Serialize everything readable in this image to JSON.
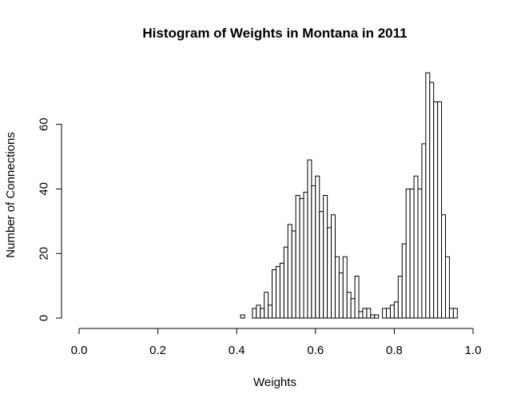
{
  "chart_data": {
    "type": "bar",
    "title": "Histogram of Weights in Montana in 2011",
    "xlabel": "Weights",
    "ylabel": "Number of Connections",
    "xlim": [
      0,
      1
    ],
    "ylim": [
      0,
      76
    ],
    "grid": false,
    "x_ticks": [
      "0.0",
      "0.2",
      "0.4",
      "0.6",
      "0.8",
      "1.0"
    ],
    "y_ticks": [
      "0",
      "20",
      "40",
      "60"
    ],
    "bin_width": 0.01,
    "bin_starts": [
      0.0,
      0.01,
      0.02,
      0.03,
      0.04,
      0.05,
      0.06,
      0.07,
      0.08,
      0.09,
      0.1,
      0.11,
      0.12,
      0.13,
      0.14,
      0.15,
      0.16,
      0.17,
      0.18,
      0.19,
      0.2,
      0.21,
      0.22,
      0.23,
      0.24,
      0.25,
      0.26,
      0.27,
      0.28,
      0.29,
      0.3,
      0.31,
      0.32,
      0.33,
      0.34,
      0.35,
      0.36,
      0.37,
      0.38,
      0.39,
      0.4,
      0.41,
      0.42,
      0.43,
      0.44,
      0.45,
      0.46,
      0.47,
      0.48,
      0.49,
      0.5,
      0.51,
      0.52,
      0.53,
      0.54,
      0.55,
      0.56,
      0.57,
      0.58,
      0.59,
      0.6,
      0.61,
      0.62,
      0.63,
      0.64,
      0.65,
      0.66,
      0.67,
      0.68,
      0.69,
      0.7,
      0.71,
      0.72,
      0.73,
      0.74,
      0.75,
      0.76,
      0.77,
      0.78,
      0.79,
      0.8,
      0.81,
      0.82,
      0.83,
      0.84,
      0.85,
      0.86,
      0.87,
      0.88,
      0.89,
      0.9,
      0.91,
      0.92,
      0.93,
      0.94,
      0.95,
      0.96,
      0.97,
      0.98,
      0.99
    ],
    "values": [
      0,
      0,
      0,
      0,
      0,
      0,
      0,
      0,
      0,
      0,
      0,
      0,
      0,
      0,
      0,
      0,
      0,
      0,
      0,
      0,
      0,
      0,
      0,
      0,
      0,
      0,
      0,
      0,
      0,
      0,
      0,
      0,
      0,
      0,
      0,
      0,
      0,
      0,
      0,
      0,
      0,
      1,
      0,
      0,
      3,
      4,
      3,
      8,
      4,
      15,
      16,
      17,
      22,
      29,
      27,
      38,
      37,
      39,
      49,
      41,
      44,
      33,
      38,
      28,
      32,
      19,
      14,
      19,
      8,
      6,
      13,
      2,
      3,
      3,
      1,
      1,
      0,
      3,
      3,
      4,
      5,
      13,
      23,
      40,
      40,
      44,
      40,
      54,
      76,
      73,
      67,
      67,
      32,
      19,
      3,
      3,
      0,
      0,
      0,
      0
    ]
  }
}
